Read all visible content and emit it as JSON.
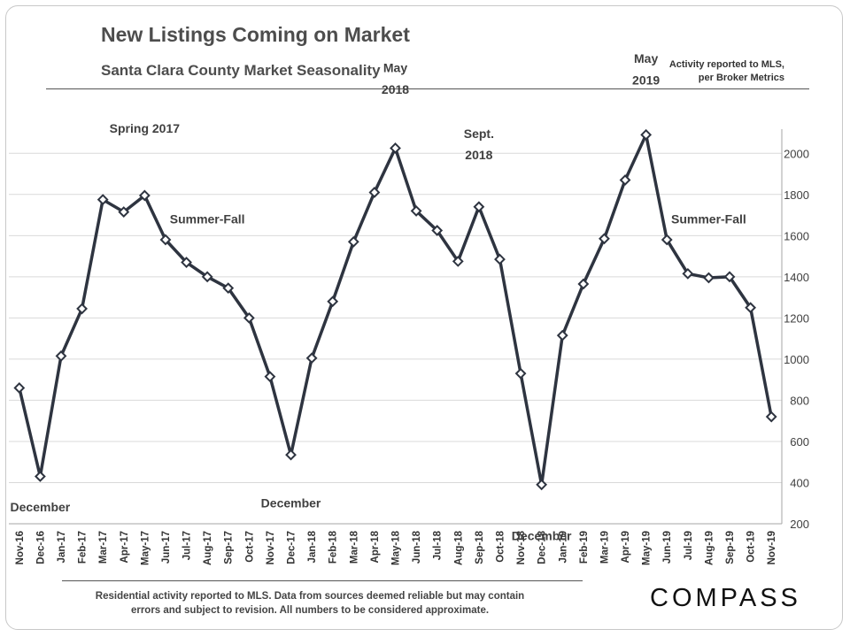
{
  "header": {
    "title": "New Listings Coming on Market",
    "subtitle": "Santa Clara County Market Seasonality",
    "note_line1": "Activity reported to MLS,",
    "note_line2": "per Broker Metrics"
  },
  "footer": {
    "disclaimer_line1": "Residential activity reported to MLS. Data from sources deemed reliable but may contain",
    "disclaimer_line2": "errors and subject to revision. All numbers to be considered approximate.",
    "logo": "COMPASS"
  },
  "chart_data": {
    "type": "line",
    "title": "New Listings Coming on Market",
    "subtitle": "Santa Clara County Market Seasonality",
    "xlabel": "",
    "ylabel": "",
    "ylim": [
      200,
      2100
    ],
    "yticks": [
      200,
      400,
      600,
      800,
      1000,
      1200,
      1400,
      1600,
      1800,
      2000
    ],
    "y_axis_side": "right",
    "grid": true,
    "categories": [
      "Nov-16",
      "Dec-16",
      "Jan-17",
      "Feb-17",
      "Mar-17",
      "Apr-17",
      "May-17",
      "Jun-17",
      "Jul-17",
      "Aug-17",
      "Sep-17",
      "Oct-17",
      "Nov-17",
      "Dec-17",
      "Jan-18",
      "Feb-18",
      "Mar-18",
      "Apr-18",
      "May-18",
      "Jun-18",
      "Jul-18",
      "Aug-18",
      "Sep-18",
      "Oct-18",
      "Nov-18",
      "Dec-18",
      "Jan-19",
      "Feb-19",
      "Mar-19",
      "Apr-19",
      "May-19",
      "Jun-19",
      "Jul-19",
      "Aug-19",
      "Sep-19",
      "Oct-19",
      "Nov-19"
    ],
    "series": [
      {
        "values": [
          860,
          430,
          1015,
          1245,
          1775,
          1715,
          1795,
          1580,
          1470,
          1400,
          1345,
          1200,
          915,
          535,
          1005,
          1280,
          1570,
          1810,
          2025,
          1720,
          1625,
          1475,
          1740,
          1485,
          930,
          390,
          1115,
          1365,
          1585,
          1870,
          2090,
          1580,
          1415,
          1395,
          1400,
          1250,
          720
        ]
      }
    ],
    "annotations": [
      {
        "text": "December",
        "category": "Dec-16",
        "y": 260
      },
      {
        "text": "Spring 2017",
        "category": "May-17",
        "y": 2100
      },
      {
        "text": "Summer-Fall",
        "category": "Aug-17",
        "y": 1660
      },
      {
        "text": "December",
        "category": "Dec-17",
        "y": 280
      },
      {
        "text": "May",
        "category": "May-18",
        "y": 2395
      },
      {
        "text": "2018",
        "category": "May-18",
        "y": 2290
      },
      {
        "text": "Sept.",
        "category": "Sep-18",
        "y": 2075
      },
      {
        "text": "2018",
        "category": "Sep-18",
        "y": 1970
      },
      {
        "text": "December",
        "category": "Dec-18",
        "y": 120
      },
      {
        "text": "May",
        "category": "May-19",
        "y": 2440
      },
      {
        "text": "2019",
        "category": "May-19",
        "y": 2335
      },
      {
        "text": "Summer-Fall",
        "category": "Aug-19",
        "y": 1660
      }
    ],
    "colors": {
      "line": "#2e3440",
      "marker_fill": "#ffffff",
      "grid": "#d9d9d9",
      "text": "#404040"
    }
  }
}
